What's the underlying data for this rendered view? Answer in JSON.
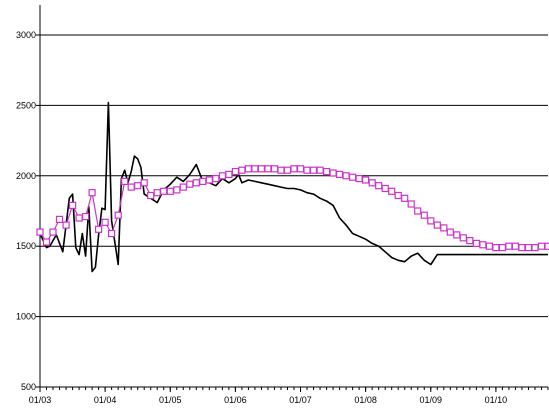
{
  "chart_data": {
    "type": "line",
    "title": "",
    "xlabel": "",
    "ylabel": "",
    "ylim": [
      500,
      3000
    ],
    "yticks": [
      500,
      1000,
      1500,
      2000,
      2500,
      3000
    ],
    "xtick_labels": [
      "01/03",
      "01/04",
      "01/05",
      "01/06",
      "01/07",
      "01/08",
      "01/09",
      "01/10"
    ],
    "xtick_positions": [
      0,
      20,
      40,
      60,
      80,
      100,
      120,
      140
    ],
    "xlim": [
      0,
      156
    ],
    "grid": "horizontal",
    "legend": "none",
    "series": [
      {
        "style": "line",
        "color": "#000000",
        "x": [
          0,
          2,
          3,
          5,
          7,
          9,
          10,
          11,
          12,
          13,
          14,
          15,
          16,
          17,
          18,
          19,
          20,
          21,
          22,
          24,
          25,
          26,
          27,
          28,
          29,
          30,
          31,
          32,
          34,
          36,
          38,
          40,
          42,
          44,
          46,
          48,
          50,
          52,
          54,
          56,
          58,
          60,
          61,
          62,
          64,
          66,
          68,
          70,
          72,
          74,
          76,
          78,
          80,
          82,
          84,
          86,
          88,
          90,
          92,
          94,
          96,
          98,
          100,
          102,
          104,
          106,
          108,
          110,
          112,
          114,
          116,
          118,
          120,
          122,
          124,
          126,
          128,
          130,
          132,
          134,
          136,
          138,
          140,
          142,
          144,
          146,
          148,
          150,
          152,
          154,
          156
        ],
        "values": [
          1590,
          1490,
          1500,
          1580,
          1460,
          1840,
          1870,
          1490,
          1440,
          1590,
          1430,
          1780,
          1320,
          1350,
          1580,
          1770,
          1760,
          2520,
          1680,
          1370,
          1980,
          2040,
          1950,
          2030,
          2140,
          2120,
          2060,
          1870,
          1840,
          1810,
          1900,
          1940,
          1990,
          1960,
          2010,
          2080,
          1960,
          1950,
          1930,
          1980,
          1950,
          1980,
          2010,
          1950,
          1970,
          1960,
          1950,
          1940,
          1930,
          1920,
          1910,
          1910,
          1900,
          1880,
          1870,
          1840,
          1820,
          1790,
          1700,
          1650,
          1590,
          1570,
          1550,
          1520,
          1500,
          1460,
          1420,
          1400,
          1390,
          1430,
          1450,
          1400,
          1370,
          1440,
          1440,
          1440,
          1440,
          1440,
          1440,
          1440,
          1440,
          1440,
          1440,
          1440,
          1440,
          1440,
          1440,
          1440,
          1440,
          1440,
          1440
        ]
      },
      {
        "style": "line-with-square-markers",
        "color": "#cc33cc",
        "marker_fill": "#ffffff",
        "x": [
          0,
          2,
          4,
          6,
          8,
          10,
          12,
          14,
          16,
          18,
          20,
          22,
          24,
          26,
          28,
          30,
          32,
          34,
          36,
          38,
          40,
          42,
          44,
          46,
          48,
          50,
          52,
          54,
          56,
          58,
          60,
          62,
          64,
          66,
          68,
          70,
          72,
          74,
          76,
          78,
          80,
          82,
          84,
          86,
          88,
          90,
          92,
          94,
          96,
          98,
          100,
          102,
          104,
          106,
          108,
          110,
          112,
          114,
          116,
          118,
          120,
          122,
          124,
          126,
          128,
          130,
          132,
          134,
          136,
          138,
          140,
          142,
          144,
          146,
          148,
          150,
          152,
          154,
          156
        ],
        "values": [
          1600,
          1530,
          1600,
          1690,
          1650,
          1790,
          1700,
          1710,
          1880,
          1620,
          1670,
          1590,
          1720,
          1960,
          1920,
          1930,
          1950,
          1860,
          1880,
          1890,
          1890,
          1900,
          1920,
          1940,
          1950,
          1960,
          1970,
          1980,
          2000,
          2010,
          2030,
          2040,
          2050,
          2050,
          2050,
          2050,
          2050,
          2040,
          2040,
          2050,
          2050,
          2040,
          2040,
          2040,
          2030,
          2020,
          2010,
          2000,
          1990,
          1980,
          1970,
          1950,
          1930,
          1910,
          1890,
          1860,
          1840,
          1800,
          1750,
          1720,
          1680,
          1650,
          1630,
          1600,
          1580,
          1560,
          1540,
          1520,
          1510,
          1500,
          1490,
          1490,
          1500,
          1500,
          1490,
          1490,
          1490,
          1500,
          1500
        ]
      }
    ]
  }
}
